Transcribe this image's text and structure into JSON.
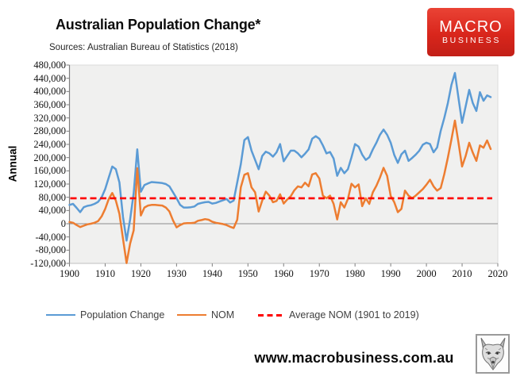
{
  "header": {
    "title": "Australian Population Change*",
    "subtitle": "Sources: Australian Bureau of Statistics (2018)"
  },
  "logo": {
    "line1": "MACRO",
    "line2": "BUSINESS",
    "bg_color": "#D9261C",
    "text_color": "#FFFFFF"
  },
  "y_axis": {
    "title": "Annual",
    "tick_labels": [
      "480,000",
      "440,000",
      "400,000",
      "360,000",
      "320,000",
      "280,000",
      "240,000",
      "200,000",
      "160,000",
      "120,000",
      "80,000",
      "40,000",
      "0",
      "-40,000",
      "-80,000",
      "-120,000"
    ]
  },
  "x_axis": {
    "tick_labels": [
      "1900",
      "1910",
      "1920",
      "1930",
      "1940",
      "1950",
      "1960",
      "1970",
      "1980",
      "1990",
      "2000",
      "2010",
      "2020"
    ]
  },
  "legend": [
    {
      "label": "Population Change",
      "color": "#5B9BD5",
      "style": "solid"
    },
    {
      "label": "NOM",
      "color": "#ED7D31",
      "style": "solid"
    },
    {
      "label": "Average NOM (1901 to 2019)",
      "color": "#FE0000",
      "style": "dashed"
    }
  ],
  "footer": {
    "url": "www.macrobusiness.com.au"
  },
  "chart_data": {
    "type": "line",
    "title": "Australian Population Change*",
    "ylabel": "Annual",
    "ylim": [
      -120000,
      480000
    ],
    "y_tick_step": 40000,
    "xlim": [
      1900,
      2020
    ],
    "x_tick_step": 10,
    "x_start": 1900,
    "x_end": 2018,
    "grid": "none",
    "plot_background": "#F0F0EF",
    "legend_position": "bottom",
    "series": [
      {
        "name": "Population Change",
        "color": "#5B9BD5",
        "values": [
          57000,
          60000,
          48000,
          35000,
          50000,
          54000,
          56000,
          60000,
          66000,
          80000,
          105000,
          140000,
          173000,
          165000,
          125000,
          21000,
          -51000,
          13000,
          93000,
          225000,
          97000,
          117000,
          122000,
          126000,
          125000,
          124000,
          123000,
          120000,
          113000,
          95000,
          77000,
          57000,
          49000,
          49000,
          50000,
          52000,
          60000,
          63000,
          65000,
          66000,
          61000,
          63000,
          67000,
          71000,
          75000,
          64000,
          70000,
          125000,
          180000,
          253000,
          262000,
          221000,
          193000,
          165000,
          205000,
          218000,
          213000,
          203000,
          216000,
          241000,
          189000,
          205000,
          221000,
          221000,
          213000,
          201000,
          212000,
          225000,
          257000,
          265000,
          257000,
          237000,
          213000,
          217000,
          197000,
          145000,
          169000,
          153000,
          165000,
          201000,
          241000,
          233000,
          209000,
          193000,
          201000,
          225000,
          245000,
          269000,
          285000,
          269000,
          245000,
          208000,
          184000,
          210000,
          221000,
          190000,
          199000,
          209000,
          221000,
          239000,
          245000,
          241000,
          216000,
          231000,
          281000,
          320000,
          365000,
          420000,
          456000,
          380000,
          305000,
          355000,
          405000,
          365000,
          341000,
          398000,
          372000,
          388000,
          383000
        ]
      },
      {
        "name": "NOM",
        "color": "#ED7D31",
        "values": [
          5000,
          3000,
          -4000,
          -10000,
          -6000,
          -2000,
          0,
          3000,
          8000,
          22000,
          45000,
          75000,
          93000,
          70000,
          30000,
          -45000,
          -119000,
          -60000,
          -20000,
          168000,
          25000,
          49000,
          55000,
          57000,
          57000,
          56000,
          55000,
          49000,
          37000,
          10000,
          -11000,
          -4000,
          1000,
          2000,
          2000,
          3000,
          9000,
          11000,
          14000,
          12000,
          6000,
          3000,
          1000,
          -1000,
          -4000,
          -9000,
          -13000,
          12000,
          110000,
          148000,
          153000,
          110000,
          95000,
          37000,
          70000,
          97000,
          85000,
          65000,
          69000,
          89000,
          61000,
          73000,
          83000,
          101000,
          113000,
          110000,
          124000,
          113000,
          149000,
          153000,
          137000,
          85000,
          77000,
          85000,
          60000,
          13000,
          65000,
          49000,
          75000,
          121000,
          110000,
          119000,
          53000,
          77000,
          60000,
          95000,
          115000,
          140000,
          169000,
          145000,
          84000,
          65000,
          35000,
          45000,
          100000,
          85000,
          77000,
          85000,
          95000,
          105000,
          118000,
          133000,
          113000,
          100000,
          108000,
          150000,
          200000,
          255000,
          312000,
          245000,
          173000,
          205000,
          245000,
          215000,
          190000,
          237000,
          230000,
          252000,
          226000
        ]
      },
      {
        "name": "Average NOM (1901 to 2019)",
        "color": "#FE0000",
        "style": "dashed",
        "constant": 77000
      }
    ]
  }
}
